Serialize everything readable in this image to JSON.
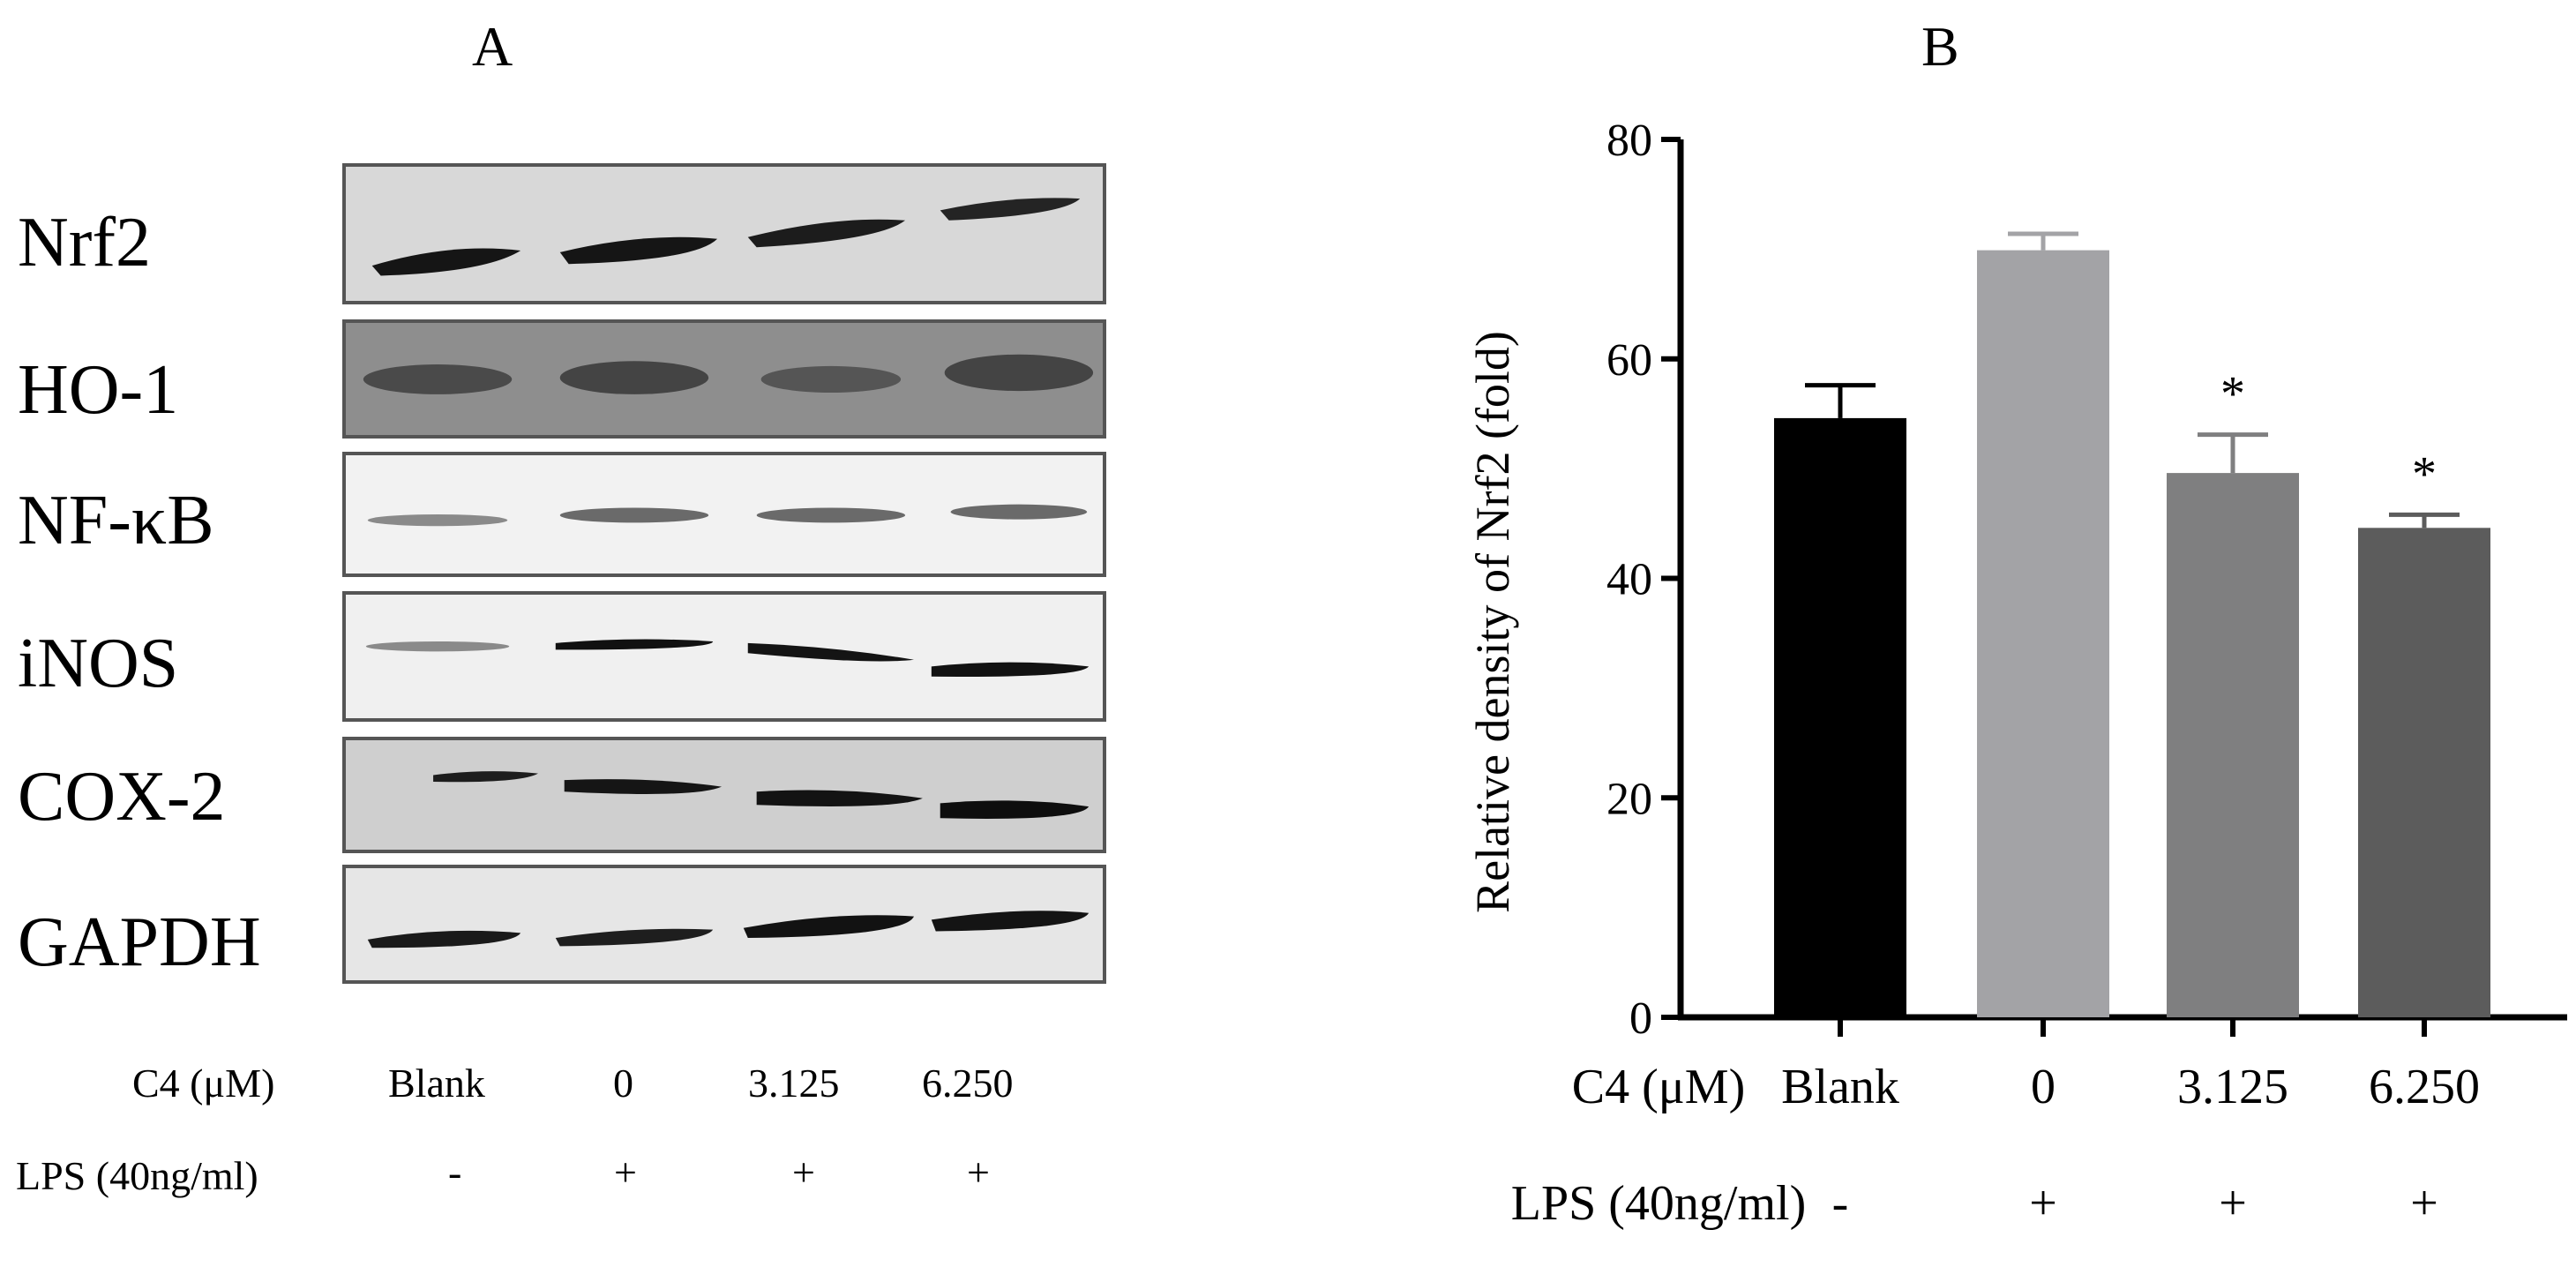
{
  "panel_a": {
    "letter": "A",
    "proteins": [
      "Nrf2",
      "HO-1",
      "NF-κB",
      "iNOS",
      "COX-2",
      "GAPDH"
    ],
    "conditions": {
      "c4_label": "C4 (μM)",
      "c4_values": [
        "Blank",
        "0",
        "3.125",
        "6.250"
      ],
      "lps_label": "LPS (40ng/ml)",
      "lps_values": [
        "-",
        "+",
        "+",
        "+"
      ]
    }
  },
  "panel_b": {
    "letter": "B",
    "lps_label": "LPS (40ng/ml)",
    "lps_values": [
      "-",
      "+",
      "+",
      "+"
    ],
    "significance": [
      "",
      "",
      "*",
      "*"
    ]
  },
  "chart_data": {
    "type": "bar",
    "categories_label": "C4 (μM)",
    "categories": [
      "Blank",
      "0",
      "3.125",
      "6.250"
    ],
    "values": [
      54.6,
      69.9,
      49.6,
      44.6
    ],
    "errors": [
      3.0,
      1.5,
      3.5,
      1.2
    ],
    "bar_colors": [
      "#000000",
      "#a3a3a6",
      "#7f7f80",
      "#5c5c5c"
    ],
    "ylabel": "Relative density of Nrf2 (fold)",
    "ylim": [
      0,
      80
    ],
    "yticks": [
      0,
      20,
      40,
      60,
      80
    ],
    "grid": false
  }
}
